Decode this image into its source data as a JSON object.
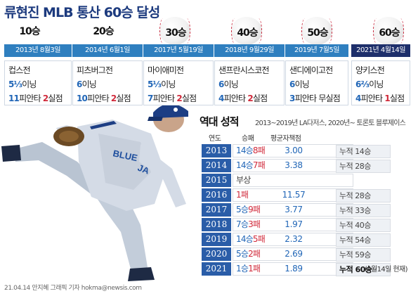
{
  "title": "류현진 MLB 통산 60승 달성",
  "milestones": [
    {
      "wins": "10승",
      "date": "2013년 8월3일",
      "opponent": "컵스전",
      "innings_num": "5⅓",
      "innings_unit": "이닝",
      "hits_num": "11",
      "hits_unit": "피안타 ",
      "er_num": "2",
      "er_unit": "실점"
    },
    {
      "wins": "20승",
      "date": "2014년 6월1일",
      "opponent": "피츠버그전",
      "innings_num": "6",
      "innings_unit": "이닝",
      "hits_num": "10",
      "hits_unit": "피안타 ",
      "er_num": "2",
      "er_unit": "실점"
    },
    {
      "wins": "30승",
      "date": "2017년 5월19일",
      "opponent": "마이애미전",
      "innings_num": "5⅓",
      "innings_unit": "이닝",
      "hits_num": "7",
      "hits_unit": "피안타 ",
      "er_num": "2",
      "er_unit": "실점"
    },
    {
      "wins": "40승",
      "date": "2018년 9월29일",
      "opponent": "샌프란시스코전",
      "innings_num": "6",
      "innings_unit": "이닝",
      "hits_num": "4",
      "hits_unit": "피안타 ",
      "er_num": "2",
      "er_unit": "실점"
    },
    {
      "wins": "50승",
      "date": "2019년 7월5일",
      "opponent": "샌디에이고전",
      "innings_num": "6",
      "innings_unit": "이닝",
      "hits_num": "3",
      "hits_unit": "피안타 ",
      "er_num": "",
      "er_unit": "무실점"
    },
    {
      "wins": "60승",
      "date": "2021년 4월14일",
      "opponent": "양키스전",
      "innings_num": "6⅔",
      "innings_unit": "이닝",
      "hits_num": "4",
      "hits_unit": "피안타 ",
      "er_num": "1",
      "er_unit": "실점"
    }
  ],
  "record": {
    "title": "역대 성적",
    "subtitle": "2013~2019년 LA다저스, 2020년~ 토론토 블루제이스",
    "headers": {
      "year": "연도",
      "wl": "승패",
      "era": "평균자책점"
    },
    "rows": [
      {
        "year": "2013",
        "w": "14승",
        "l": "8패",
        "era": "3.00",
        "cum": "누적 14승"
      },
      {
        "year": "2014",
        "w": "14승",
        "l": "7패",
        "era": "3.38",
        "cum": "누적 28승"
      },
      {
        "year": "2015",
        "w": "",
        "l": "부상",
        "era": "",
        "cum": ""
      },
      {
        "year": "2016",
        "w": "",
        "l": "1패",
        "era": "11.57",
        "cum": "누적 28승"
      },
      {
        "year": "2017",
        "w": "5승",
        "l": "9패",
        "era": "3.77",
        "cum": "누적 33승"
      },
      {
        "year": "2018",
        "w": "7승",
        "l": "3패",
        "era": "1.97",
        "cum": "누적 40승"
      },
      {
        "year": "2019",
        "w": "14승",
        "l": "5패",
        "era": "2.32",
        "cum": "누적 54승"
      },
      {
        "year": "2020",
        "w": "5승",
        "l": "2패",
        "era": "2.69",
        "cum": "누적 59승"
      },
      {
        "year": "2021",
        "w": "1승",
        "l": "1패",
        "era": "1.89",
        "cum": "누적 60승"
      }
    ],
    "note": "(4월14일 현재)"
  },
  "credit": "21.04.14 안지혜 그래픽 기자 hokma@newsis.com",
  "colors": {
    "title": "#1c3a7e",
    "date_bar": "#2f7fbf",
    "date_bar_highlight": "#1e2f6b",
    "year_cell": "#2a5da8",
    "blue_text": "#2166b7",
    "red_text": "#d0293a"
  }
}
